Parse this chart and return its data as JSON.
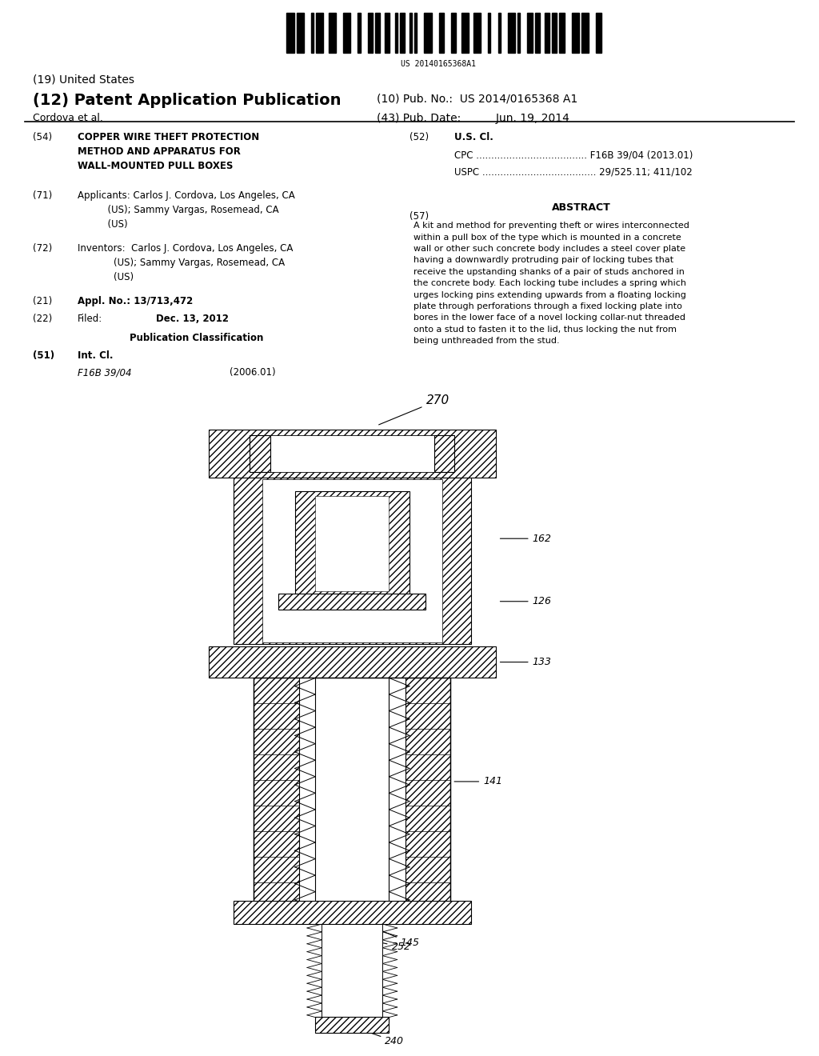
{
  "bg_color": "#ffffff",
  "title_19": "(19) United States",
  "title_12": "(12) Patent Application Publication",
  "pub_no_label": "(10) Pub. No.:",
  "pub_no": "US 2014/0165368 A1",
  "inventor": "Cordova et al.",
  "pub_date_label": "(43) Pub. Date:",
  "pub_date": "Jun. 19, 2014",
  "barcode_text": "US 20140165368A1",
  "field54_label": "(54)",
  "field54": "COPPER WIRE THEFT PROTECTION\nMETHOD AND APPARATUS FOR\nWALL-MOUNTED PULL BOXES",
  "field52_label": "(52)",
  "field52_title": "U.S. Cl.",
  "field52_cpc": "CPC ..................................... F16B 39/04 (2013.01)",
  "field52_uspc": "USPC ...................................... 29/525.11; 411/102",
  "field71_label": "(71)",
  "field71": "Applicants: Carlos J. Cordova, Los Angeles, CA\n          (US); Sammy Vargas, Rosemead, CA\n          (US)",
  "field57_label": "(57)",
  "field57_title": "ABSTRACT",
  "field57_text": "A kit and method for preventing theft or wires interconnected\nwithin a pull box of the type which is mounted in a concrete\nwall or other such concrete body includes a steel cover plate\nhaving a downwardly protruding pair of locking tubes that\nreceive the upstanding shanks of a pair of studs anchored in\nthe concrete body. Each locking tube includes a spring which\nurges locking pins extending upwards from a floating locking\nplate through perforations through a fixed locking plate into\nbores in the lower face of a novel locking collar-nut threaded\nonto a stud to fasten it to the lid, thus locking the nut from\nbeing unthreaded from the stud.",
  "field72_label": "(72)",
  "field72": "Inventors:  Carlos J. Cordova, Los Angeles, CA\n            (US); Sammy Vargas, Rosemead, CA\n            (US)",
  "field21_label": "(21)",
  "field21": "Appl. No.: 13/713,472",
  "field22_label": "(22)",
  "field22_filed": "Filed:",
  "field22_date": "Dec. 13, 2012",
  "pub_class_title": "Publication Classification",
  "field51_label": "(51)",
  "field51_title": "Int. Cl.",
  "field51_class": "F16B 39/04",
  "field51_year": "(2006.01)"
}
